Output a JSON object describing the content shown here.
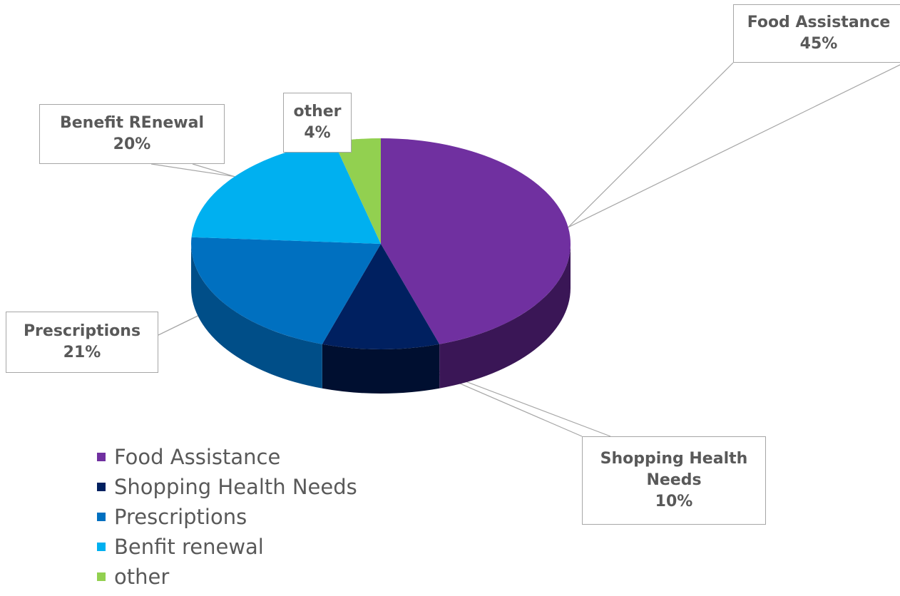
{
  "chart_data": {
    "type": "pie",
    "title": "",
    "slices": [
      {
        "key": "food",
        "label_line1": "Food Assistance",
        "label_line2": "",
        "percent_text": "45%",
        "value": 45,
        "legend": "Food Assistance",
        "color": "#7030a0",
        "side_color": "#3a1656"
      },
      {
        "key": "shopping",
        "label_line1": "Shopping Health",
        "label_line2": "Needs",
        "percent_text": "10%",
        "value": 10,
        "legend": "Shopping Health Needs",
        "color": "#002060",
        "side_color": "#000f30"
      },
      {
        "key": "prescriptions",
        "label_line1": "Prescriptions",
        "label_line2": "",
        "percent_text": "21%",
        "value": 21,
        "legend": "Prescriptions",
        "color": "#0070c0",
        "side_color": "#004e88"
      },
      {
        "key": "renewal",
        "label_line1": "Benefit REnewal",
        "label_line2": "",
        "percent_text": "20%",
        "value": 20,
        "legend": "Benfit renewal",
        "color": "#00b0f0",
        "side_color": "#0081b0"
      },
      {
        "key": "other",
        "label_line1": "other",
        "label_line2": "",
        "percent_text": "4%",
        "value": 4,
        "legend": "other",
        "color": "#92d050",
        "side_color": "#5f9030"
      }
    ],
    "legend_position": "bottom-left"
  }
}
